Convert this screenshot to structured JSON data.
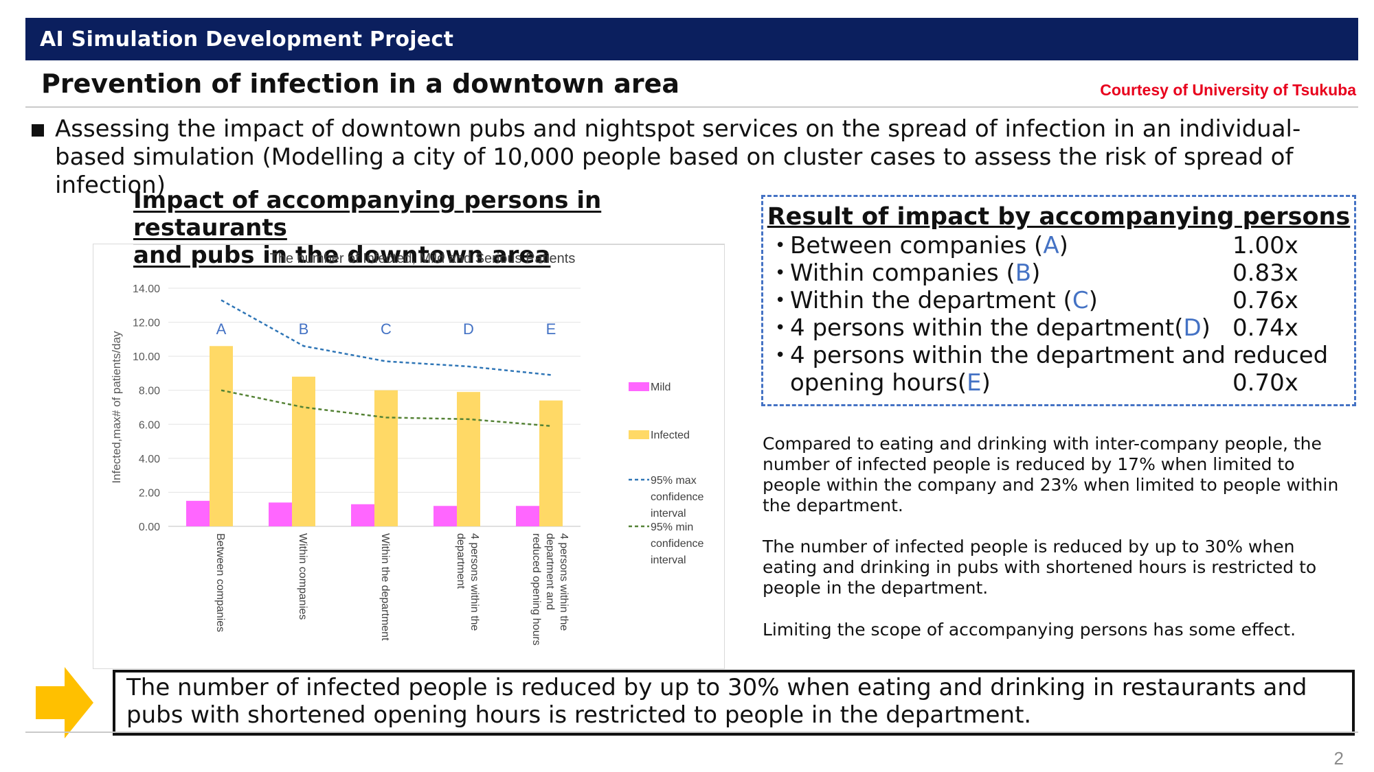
{
  "header": {
    "title": "AI Simulation Development Project"
  },
  "page_title": "Prevention of infection in a downtown area",
  "courtesy": "Courtesy of University of Tsukuba",
  "intro": "Assessing the impact of downtown pubs and nightspot services on the spread of infection in an individual-based simulation (Modelling a city of 10,000 people based on cluster cases to assess the risk of spread of infection)",
  "chart_heading_line1": "Impact of accompanying persons in restaurants",
  "chart_heading_line2": "and pubs in the downtown area",
  "chart_data": {
    "type": "bar",
    "title": "The number of Infected, Mild and Serious Patients",
    "ylabel": "Infected,max# of patients/day",
    "xlabel": "",
    "ylim": [
      0,
      14
    ],
    "y_ticks": [
      "0.00",
      "2.00",
      "4.00",
      "6.00",
      "8.00",
      "10.00",
      "12.00",
      "14.00"
    ],
    "categories": [
      [
        "Between companies"
      ],
      [
        "Within companies"
      ],
      [
        "Within the department"
      ],
      [
        "4 persons within the",
        "department"
      ],
      [
        "4 persons within the",
        "department and",
        "reduced opening hours"
      ]
    ],
    "letters": [
      "A",
      "B",
      "C",
      "D",
      "E"
    ],
    "series": [
      {
        "name": "Mild",
        "type": "bar",
        "color": "#ff66ff",
        "values": [
          1.5,
          1.4,
          1.3,
          1.2,
          1.2
        ]
      },
      {
        "name": "Infected",
        "type": "bar",
        "color": "#ffd966",
        "values": [
          10.6,
          8.8,
          8.0,
          7.9,
          7.4
        ]
      },
      {
        "name": "95% max confidence interval",
        "type": "line",
        "style": "dashed",
        "color": "#2e75b6",
        "values": [
          13.3,
          10.6,
          9.7,
          9.4,
          8.9
        ]
      },
      {
        "name": "95% min confidence interval",
        "type": "line",
        "style": "dashed",
        "color": "#548235",
        "values": [
          8.0,
          7.0,
          6.4,
          6.3,
          5.9
        ]
      }
    ],
    "legend_lines": [
      [
        "Mild"
      ],
      [
        "Infected"
      ],
      [
        "95% max",
        "confidence",
        "interval"
      ],
      [
        "95% min",
        "confidence",
        "interval"
      ]
    ],
    "legend_position": "right",
    "grid": true
  },
  "results": {
    "title": "Result of impact by accompanying persons",
    "bullet": "•",
    "rows": [
      {
        "pre": "Between companies (",
        "letter": "A",
        "post": ")",
        "value": "1.00x"
      },
      {
        "pre": "Within companies (",
        "letter": "B",
        "post": ")",
        "value": "0.83x"
      },
      {
        "pre": "Within the department (",
        "letter": "C",
        "post": ")",
        "value": "0.76x"
      },
      {
        "pre": "4 persons within the department(",
        "letter": "D",
        "post": ")",
        "value": "0.74x"
      },
      {
        "pre": "4 persons within the department and reduced",
        "letter": "",
        "post": "",
        "value": ""
      },
      {
        "pre": "opening hours(",
        "letter": "E",
        "post": ")",
        "value": "0.70x"
      }
    ]
  },
  "paragraphs": [
    "Compared to eating and drinking with inter-company people, the number of infected people is reduced by 17% when limited to people within the company and 23% when limited to people within the department.",
    "The number of infected people is reduced by up to 30% when eating and drinking in pubs with shortened hours is restricted to people in the department.",
    "Limiting the scope of accompanying persons has some effect."
  ],
  "conclusion": "The number of infected people is reduced by up to 30% when eating and drinking in restaurants and pubs with shortened opening hours is restricted to people in the department.",
  "arrow_color": "#ffc000",
  "page_number": "2"
}
